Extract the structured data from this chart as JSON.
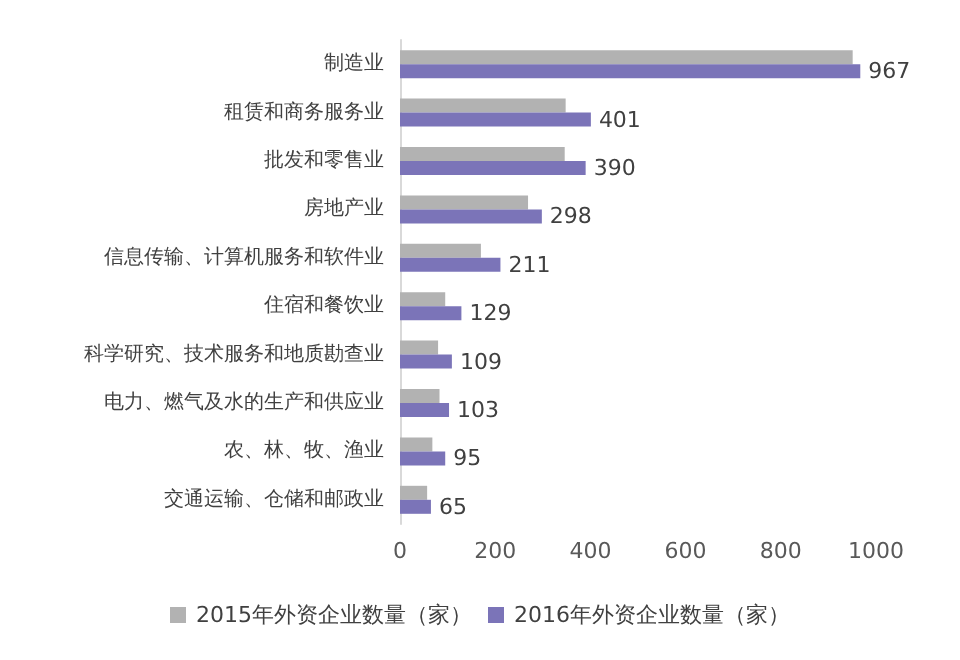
{
  "chart_data": {
    "type": "bar",
    "orientation": "horizontal",
    "categories": [
      "制造业",
      "租赁和商务服务业",
      "批发和零售业",
      "房地产业",
      "信息传输、计算机服务和软件业",
      "住宿和餐饮业",
      "科学研究、技术服务和地质勘查业",
      "电力、燃气及水的生产和供应业",
      "农、林、牧、渔业",
      "交通运输、仓储和邮政业"
    ],
    "series": [
      {
        "name": "2015年外资企业数量（家）",
        "color": "#b2b2b2",
        "values": [
          951,
          348,
          346,
          269,
          170,
          95,
          80,
          83,
          68,
          57
        ]
      },
      {
        "name": "2016年外资企业数量（家）",
        "color": "#7b74b8",
        "values": [
          967,
          401,
          390,
          298,
          211,
          129,
          109,
          103,
          95,
          65
        ],
        "value_labels": [
          "967",
          "401",
          "390",
          "298",
          "211",
          "129",
          "109",
          "103",
          "95",
          "65"
        ]
      }
    ],
    "xlim": [
      0,
      1000
    ],
    "xticks": [
      0,
      200,
      400,
      600,
      800,
      1000
    ],
    "grid": false,
    "legend": "bottom"
  }
}
